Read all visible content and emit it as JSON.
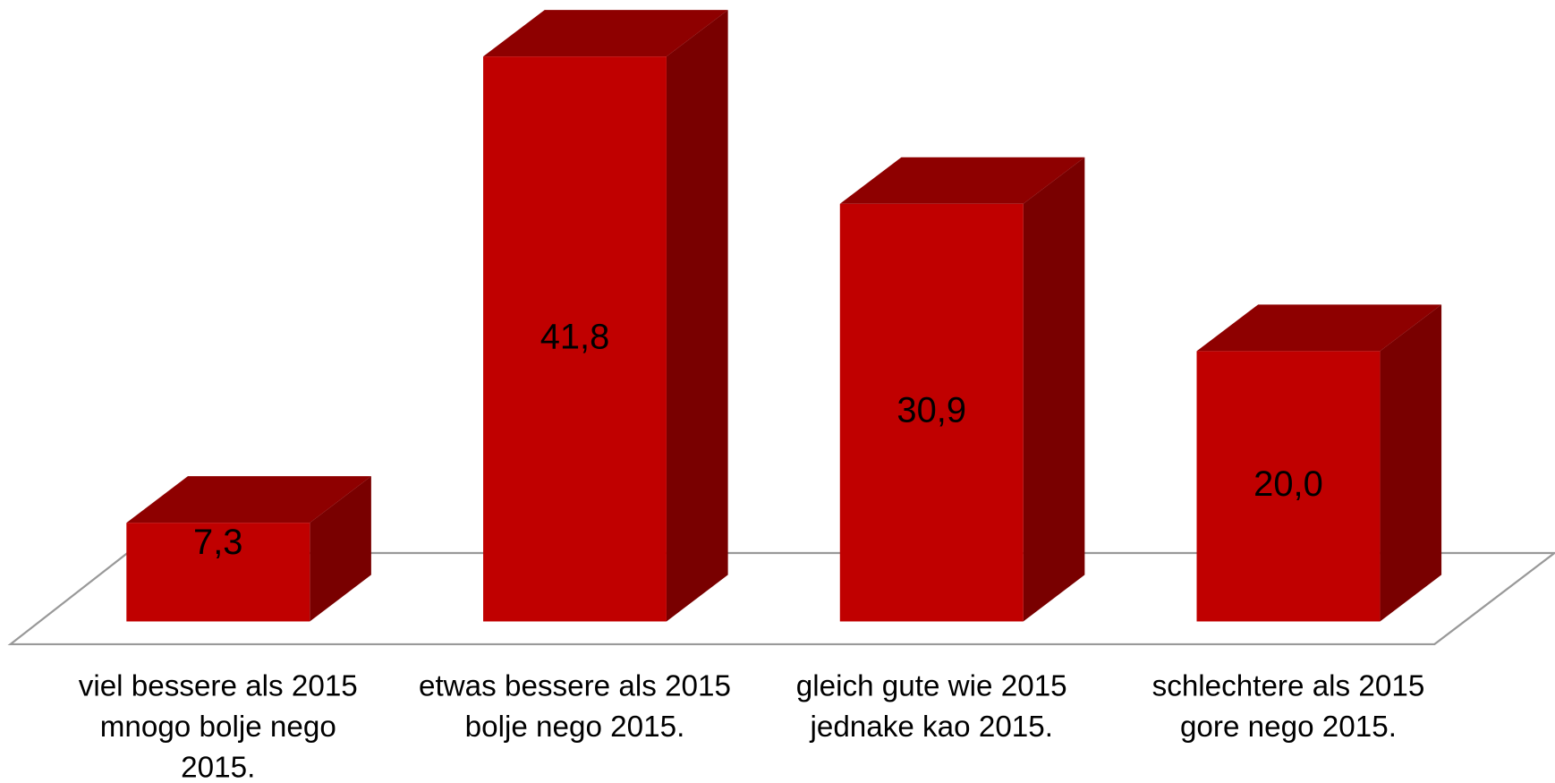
{
  "chart_data": {
    "type": "bar3d",
    "categories": [
      [
        "viel bessere als 2015",
        "mnogo bolje nego",
        "2015."
      ],
      [
        "etwas bessere als 2015",
        "bolje nego 2015."
      ],
      [
        "gleich gute wie 2015",
        "jednake kao 2015."
      ],
      [
        "schlechtere als 2015",
        "gore nego 2015."
      ]
    ],
    "values": [
      7.3,
      41.8,
      30.9,
      20.0
    ],
    "value_labels": [
      "7,3",
      "41,8",
      "30,9",
      "20,0"
    ],
    "color": "#c00000"
  }
}
